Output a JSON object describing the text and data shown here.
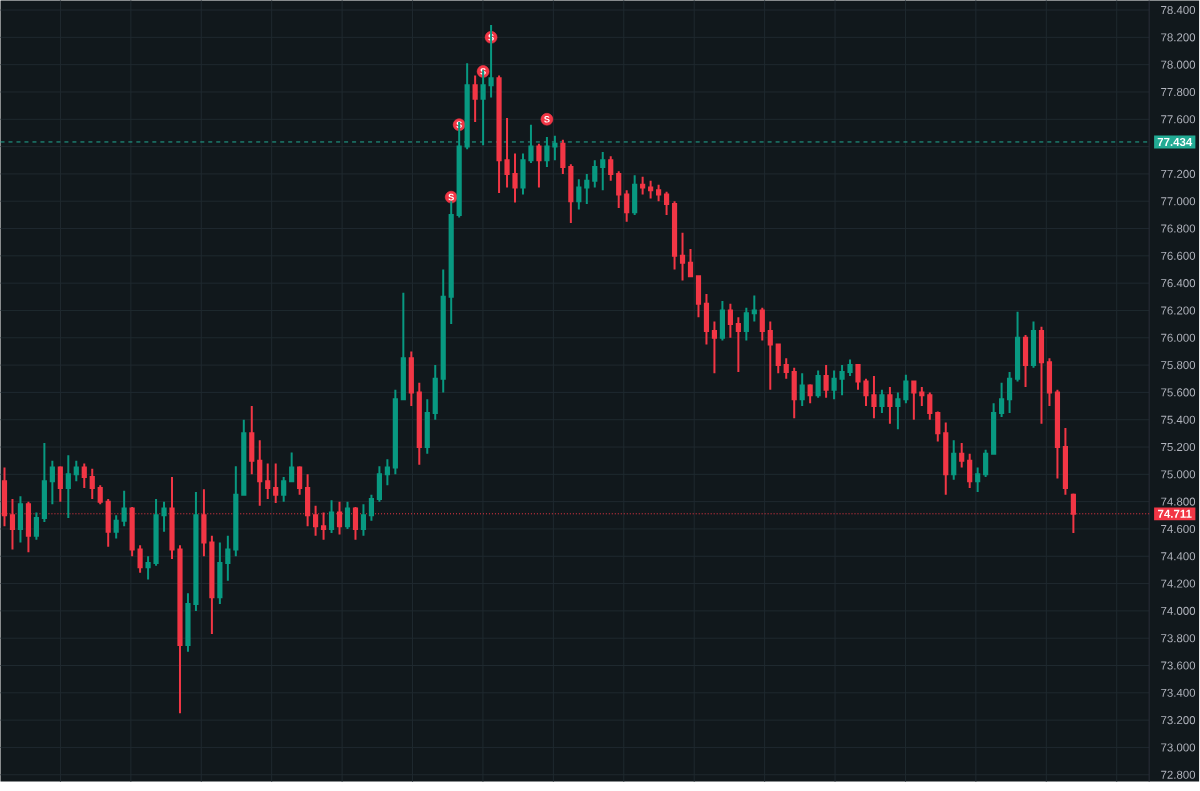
{
  "chart_data": {
    "type": "candlestick",
    "categories": [
      null,
      null,
      null,
      null,
      null,
      null,
      null,
      null,
      null,
      null,
      null,
      null,
      null,
      null,
      null,
      null,
      null,
      null,
      null,
      null,
      null,
      null,
      null,
      null,
      null,
      null,
      null,
      null,
      null,
      null,
      null,
      null,
      null,
      null,
      null,
      null,
      null,
      null,
      null,
      null,
      null,
      null,
      null,
      null,
      null,
      null,
      null,
      null,
      null,
      null,
      null,
      null,
      null,
      null,
      null,
      null,
      null,
      null,
      null,
      null,
      null,
      null,
      null,
      null,
      null,
      null,
      null,
      null,
      null,
      null,
      null,
      null,
      null,
      null,
      null,
      null,
      null,
      null,
      null,
      null,
      null,
      null,
      null,
      null,
      null,
      null,
      null,
      null,
      null,
      null,
      null,
      null,
      null,
      null,
      null,
      null,
      null,
      null,
      null,
      null,
      null,
      null,
      null,
      null,
      null,
      null,
      null,
      null,
      null,
      null,
      null,
      null,
      null,
      null,
      null,
      null,
      null,
      null,
      null,
      null,
      null,
      null,
      null,
      null,
      null,
      null,
      null,
      null,
      null,
      null,
      null,
      null,
      null,
      null,
      null,
      null,
      null,
      null,
      null,
      null,
      null,
      null,
      null,
      null
    ],
    "ohlc": [
      [
        74.95,
        75.05,
        74.62,
        74.7
      ],
      [
        74.7,
        74.82,
        74.45,
        74.6
      ],
      [
        74.6,
        74.84,
        74.5,
        74.78
      ],
      [
        74.78,
        74.8,
        74.43,
        74.55
      ],
      [
        74.55,
        74.72,
        74.52,
        74.68
      ],
      [
        74.68,
        75.23,
        74.65,
        74.95
      ],
      [
        74.95,
        75.1,
        74.78,
        75.05
      ],
      [
        75.05,
        75.06,
        74.8,
        74.9
      ],
      [
        74.9,
        75.14,
        74.68,
        75.0
      ],
      [
        75.0,
        75.1,
        74.95,
        75.05
      ],
      [
        75.05,
        75.08,
        74.9,
        74.98
      ],
      [
        74.98,
        75.04,
        74.82,
        74.9
      ],
      [
        74.9,
        74.92,
        74.78,
        74.8
      ],
      [
        74.8,
        74.82,
        74.47,
        74.58
      ],
      [
        74.58,
        74.7,
        74.53,
        74.66
      ],
      [
        74.66,
        74.88,
        74.62,
        74.75
      ],
      [
        74.75,
        74.76,
        74.4,
        74.45
      ],
      [
        74.45,
        74.48,
        74.28,
        74.32
      ],
      [
        74.32,
        74.4,
        74.23,
        74.35
      ],
      [
        74.35,
        74.82,
        74.33,
        74.7
      ],
      [
        74.7,
        74.8,
        74.58,
        74.75
      ],
      [
        74.75,
        74.98,
        74.38,
        74.45
      ],
      [
        74.45,
        74.48,
        73.25,
        73.75
      ],
      [
        73.75,
        74.13,
        73.7,
        74.05
      ],
      [
        74.05,
        74.87,
        74.0,
        74.7
      ],
      [
        74.7,
        74.89,
        74.4,
        74.5
      ],
      [
        74.5,
        74.55,
        73.83,
        74.1
      ],
      [
        74.1,
        74.5,
        74.05,
        74.35
      ],
      [
        74.35,
        74.55,
        74.22,
        74.45
      ],
      [
        74.45,
        75.06,
        74.4,
        74.85
      ],
      [
        74.85,
        75.4,
        74.85,
        75.3
      ],
      [
        75.3,
        75.5,
        75.0,
        75.1
      ],
      [
        75.1,
        75.25,
        74.77,
        74.95
      ],
      [
        74.95,
        75.08,
        74.82,
        74.9
      ],
      [
        74.9,
        75.08,
        74.79,
        74.85
      ],
      [
        74.85,
        74.98,
        74.8,
        74.95
      ],
      [
        74.95,
        75.16,
        74.95,
        75.05
      ],
      [
        75.05,
        75.06,
        74.85,
        74.9
      ],
      [
        74.9,
        75.0,
        74.62,
        74.7
      ],
      [
        74.7,
        74.77,
        74.55,
        74.62
      ],
      [
        74.62,
        74.72,
        74.52,
        74.6
      ],
      [
        74.6,
        74.81,
        74.57,
        74.72
      ],
      [
        74.72,
        74.8,
        74.56,
        74.62
      ],
      [
        74.62,
        74.8,
        74.6,
        74.75
      ],
      [
        74.75,
        74.76,
        74.52,
        74.6
      ],
      [
        74.6,
        74.78,
        74.55,
        74.7
      ],
      [
        74.7,
        74.85,
        74.66,
        74.82
      ],
      [
        74.82,
        75.06,
        74.8,
        75.0
      ],
      [
        75.0,
        75.11,
        74.92,
        75.05
      ],
      [
        75.05,
        75.62,
        75.0,
        75.55
      ],
      [
        75.55,
        76.33,
        75.55,
        75.85
      ],
      [
        75.85,
        75.9,
        75.5,
        75.6
      ],
      [
        75.6,
        75.67,
        75.07,
        75.2
      ],
      [
        75.2,
        75.55,
        75.15,
        75.45
      ],
      [
        75.45,
        75.8,
        75.4,
        75.7
      ],
      [
        75.7,
        76.5,
        75.6,
        76.3
      ],
      [
        76.3,
        77.0,
        76.1,
        76.9
      ],
      [
        76.9,
        77.58,
        76.88,
        77.4
      ],
      [
        77.4,
        78.01,
        77.38,
        77.85
      ],
      [
        77.85,
        77.92,
        77.58,
        77.75
      ],
      [
        77.75,
        77.96,
        77.41,
        77.85
      ],
      [
        77.85,
        78.29,
        77.76,
        77.9
      ],
      [
        77.9,
        77.92,
        77.06,
        77.3
      ],
      [
        77.3,
        77.61,
        77.1,
        77.2
      ],
      [
        77.2,
        77.35,
        76.99,
        77.1
      ],
      [
        77.1,
        77.35,
        77.05,
        77.3
      ],
      [
        77.3,
        77.56,
        77.28,
        77.4
      ],
      [
        77.4,
        77.42,
        77.1,
        77.3
      ],
      [
        77.3,
        77.47,
        77.25,
        77.4
      ],
      [
        77.4,
        77.48,
        77.3,
        77.42
      ],
      [
        77.42,
        77.45,
        77.2,
        77.25
      ],
      [
        77.25,
        77.27,
        76.84,
        77.0
      ],
      [
        77.0,
        77.16,
        76.94,
        77.1
      ],
      [
        77.1,
        77.2,
        76.98,
        77.15
      ],
      [
        77.15,
        77.3,
        77.1,
        77.25
      ],
      [
        77.25,
        77.36,
        77.08,
        77.3
      ],
      [
        77.3,
        77.33,
        77.15,
        77.2
      ],
      [
        77.2,
        77.22,
        76.95,
        77.05
      ],
      [
        77.05,
        77.08,
        76.85,
        76.92
      ],
      [
        76.92,
        77.19,
        76.9,
        77.12
      ],
      [
        77.12,
        77.18,
        77.05,
        77.1
      ],
      [
        77.1,
        77.15,
        77.02,
        77.08
      ],
      [
        77.08,
        77.12,
        77.0,
        77.05
      ],
      [
        77.05,
        77.07,
        76.9,
        76.98
      ],
      [
        76.98,
        77.0,
        76.5,
        76.6
      ],
      [
        76.6,
        76.77,
        76.42,
        76.55
      ],
      [
        76.55,
        76.65,
        76.45,
        76.45
      ],
      [
        76.45,
        76.45,
        76.15,
        76.25
      ],
      [
        76.25,
        76.32,
        75.95,
        76.05
      ],
      [
        76.05,
        76.12,
        75.74,
        76.0
      ],
      [
        76.0,
        76.27,
        75.98,
        76.2
      ],
      [
        76.2,
        76.25,
        76.0,
        76.1
      ],
      [
        76.1,
        76.15,
        75.75,
        76.05
      ],
      [
        76.05,
        76.22,
        75.98,
        76.18
      ],
      [
        76.18,
        76.31,
        76.12,
        76.2
      ],
      [
        76.2,
        76.22,
        75.98,
        76.05
      ],
      [
        76.05,
        76.12,
        75.62,
        75.95
      ],
      [
        75.95,
        75.95,
        75.74,
        75.8
      ],
      [
        75.8,
        75.85,
        75.7,
        75.75
      ],
      [
        75.75,
        75.78,
        75.41,
        75.55
      ],
      [
        75.55,
        75.74,
        75.5,
        75.65
      ],
      [
        75.65,
        75.66,
        75.52,
        75.58
      ],
      [
        75.58,
        75.76,
        75.56,
        75.72
      ],
      [
        75.72,
        75.8,
        75.56,
        75.62
      ],
      [
        75.62,
        75.76,
        75.55,
        75.7
      ],
      [
        75.7,
        75.8,
        75.58,
        75.75
      ],
      [
        75.75,
        75.84,
        75.72,
        75.8
      ],
      [
        75.8,
        75.8,
        75.62,
        75.68
      ],
      [
        75.68,
        75.7,
        75.5,
        75.58
      ],
      [
        75.58,
        75.72,
        75.41,
        75.5
      ],
      [
        75.5,
        75.62,
        75.45,
        75.58
      ],
      [
        75.58,
        75.64,
        75.37,
        75.5
      ],
      [
        75.5,
        75.6,
        75.33,
        75.55
      ],
      [
        75.55,
        75.73,
        75.52,
        75.68
      ],
      [
        75.68,
        75.68,
        75.4,
        75.6
      ],
      [
        75.6,
        75.64,
        75.5,
        75.58
      ],
      [
        75.58,
        75.6,
        75.4,
        75.45
      ],
      [
        75.45,
        75.46,
        75.24,
        75.3
      ],
      [
        75.3,
        75.38,
        74.85,
        75.0
      ],
      [
        75.0,
        75.25,
        74.96,
        75.15
      ],
      [
        75.15,
        75.23,
        75.05,
        75.1
      ],
      [
        75.1,
        75.15,
        74.9,
        74.95
      ],
      [
        74.95,
        75.05,
        74.87,
        75.0
      ],
      [
        75.0,
        75.18,
        74.98,
        75.15
      ],
      [
        75.15,
        75.52,
        75.15,
        75.45
      ],
      [
        75.45,
        75.67,
        75.42,
        75.55
      ],
      [
        75.55,
        75.75,
        75.45,
        75.7
      ],
      [
        75.7,
        76.19,
        75.68,
        76.0
      ],
      [
        76.0,
        76.02,
        75.64,
        75.8
      ],
      [
        75.8,
        76.12,
        75.78,
        76.05
      ],
      [
        76.05,
        76.08,
        75.37,
        75.82
      ],
      [
        75.82,
        75.85,
        75.5,
        75.6
      ],
      [
        75.6,
        75.62,
        74.97,
        75.2
      ],
      [
        75.2,
        75.34,
        74.85,
        74.9
      ],
      [
        74.85,
        74.86,
        74.57,
        74.711
      ],
      null,
      null,
      null,
      null,
      null,
      null,
      null,
      null,
      null
    ],
    "series": [
      {
        "name": "S",
        "type": "scatter",
        "marker": "circle",
        "color": "#f23645",
        "values": [
          null,
          null,
          null,
          null,
          null,
          null,
          null,
          null,
          null,
          null,
          null,
          null,
          null,
          null,
          null,
          null,
          null,
          null,
          null,
          null,
          null,
          null,
          null,
          null,
          null,
          null,
          null,
          null,
          null,
          null,
          null,
          null,
          null,
          null,
          null,
          null,
          null,
          null,
          null,
          null,
          null,
          null,
          null,
          null,
          null,
          null,
          null,
          null,
          null,
          null,
          null,
          null,
          null,
          null,
          null,
          null,
          77.03,
          77.56,
          null,
          null,
          77.95,
          78.2,
          null,
          null,
          null,
          null,
          null,
          null,
          77.6,
          null,
          null,
          null,
          null,
          null,
          null,
          null,
          null,
          null,
          null,
          null,
          null,
          null,
          null,
          null,
          null,
          null,
          null,
          null,
          null,
          null,
          null,
          null,
          null,
          null,
          null,
          null,
          null,
          null,
          null,
          null,
          null,
          null,
          null,
          null,
          null,
          null,
          null,
          null,
          null,
          null,
          null,
          null,
          null,
          null,
          null,
          null,
          null,
          null,
          null,
          null,
          null,
          null,
          null,
          null,
          null,
          null,
          null,
          null,
          null,
          null,
          null,
          null,
          null,
          null,
          null,
          null,
          null,
          null,
          null,
          null,
          null,
          null,
          null,
          null
        ]
      }
    ],
    "ylim": [
      72.75,
      78.47
    ],
    "yticks": [
      {
        "value": 72.8,
        "label": "72.800"
      },
      {
        "value": 73.0,
        "label": "73.000"
      },
      {
        "value": 73.2,
        "label": "73.200"
      },
      {
        "value": 73.4,
        "label": "73.400"
      },
      {
        "value": 73.6,
        "label": "73.600"
      },
      {
        "value": 73.8,
        "label": "73.800"
      },
      {
        "value": 74.0,
        "label": "74.000"
      },
      {
        "value": 74.2,
        "label": "74.200"
      },
      {
        "value": 74.4,
        "label": "74.400"
      },
      {
        "value": 74.6,
        "label": "74.600"
      },
      {
        "value": 74.8,
        "label": "74.800"
      },
      {
        "value": 75.0,
        "label": "75.000"
      },
      {
        "value": 75.2,
        "label": "75.200"
      },
      {
        "value": 75.4,
        "label": "75.400"
      },
      {
        "value": 75.6,
        "label": "75.600"
      },
      {
        "value": 75.8,
        "label": "75.800"
      },
      {
        "value": 76.0,
        "label": "76.000"
      },
      {
        "value": 76.2,
        "label": "76.200"
      },
      {
        "value": 76.4,
        "label": "76.400"
      },
      {
        "value": 76.6,
        "label": "76.600"
      },
      {
        "value": 76.8,
        "label": "76.800"
      },
      {
        "value": 77.0,
        "label": "77.000"
      },
      {
        "value": 77.2,
        "label": "77.200"
      },
      {
        "value": 77.4,
        "label": null
      },
      {
        "value": 77.6,
        "label": "77.600"
      },
      {
        "value": 77.8,
        "label": "77.800"
      },
      {
        "value": 78.0,
        "label": "78.000"
      },
      {
        "value": 78.2,
        "label": "78.200"
      },
      {
        "value": 78.4,
        "label": "78.400"
      }
    ],
    "ref_lines": [
      {
        "axis": "y",
        "value": 77.434,
        "label": "77.434",
        "color": "#22ab94",
        "line_style": "dashed"
      },
      {
        "axis": "y",
        "value": 74.711,
        "label": "74.711",
        "color": "#f23645",
        "line_style": "dotted"
      }
    ],
    "grid": true,
    "tick_labels": "y"
  }
}
